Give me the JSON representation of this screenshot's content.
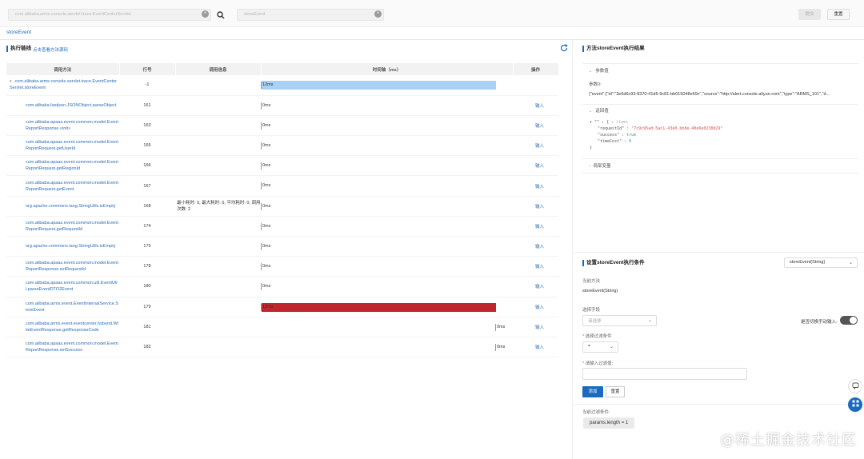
{
  "topbar": {
    "class_input": "com.alibaba.arms.console.servlet.trace.EventCenterServlet",
    "method_input": "storeEvent",
    "btn_primary": "提交",
    "btn_reset": "重置"
  },
  "tab": {
    "label": "storeEvent"
  },
  "trace": {
    "title": "执行链线",
    "link": "点击查看方法源码",
    "headers": [
      "调用方法",
      "行号",
      "调用信息",
      "时间轴（ms）",
      "操作"
    ],
    "rows": [
      {
        "method": "com.alibaba.arms.console.servlet.trace.EventCenterServlet.storeEvent",
        "line": "-1",
        "info": "",
        "time": "12ms",
        "bar": "blue",
        "op": "",
        "expand": true
      },
      {
        "method": "com.alibaba.fastjson.JSONObject.parseObject",
        "line": "161",
        "info": "",
        "time": "0ms",
        "bar": "none",
        "op": "输入"
      },
      {
        "method": "com.alibaba.apaas.event.common.model.EventReportResponse.<init>",
        "line": "163",
        "info": "",
        "time": "0ms",
        "bar": "none",
        "op": "输入"
      },
      {
        "method": "com.alibaba.apaas.event.common.model.EventReportRequest.getUserId",
        "line": "165",
        "info": "",
        "time": "0ms",
        "bar": "none",
        "op": "输入"
      },
      {
        "method": "com.alibaba.apaas.event.common.model.EventReportRequest.getRegionId",
        "line": "166",
        "info": "",
        "time": "0ms",
        "bar": "none",
        "op": "输入"
      },
      {
        "method": "com.alibaba.apaas.event.common.model.EventReportRequest.getEvent",
        "line": "167",
        "info": "",
        "time": "0ms",
        "bar": "none",
        "op": "输入"
      },
      {
        "method": "org.apache.commons.lang.StringUtils.isEmpty",
        "line": "168",
        "info": "最小耗时: 0, 最大耗时: 0, 平均耗时: 0, 调用次数: 2",
        "time": "0ms",
        "bar": "none",
        "op": "输入"
      },
      {
        "method": "com.alibaba.apaas.event.common.model.EventReportRequest.getRequestId",
        "line": "174",
        "info": "",
        "time": "0ms",
        "bar": "none",
        "op": "输入"
      },
      {
        "method": "org.apache.commons.lang.StringUtils.isEmpty",
        "line": "175",
        "info": "",
        "time": "0ms",
        "bar": "none",
        "op": "输入"
      },
      {
        "method": "com.alibaba.apaas.event.common.model.EventReportResponse.setRequestId",
        "line": "178",
        "info": "",
        "time": "0ms",
        "bar": "none",
        "op": "输入"
      },
      {
        "method": "com.alibaba.apaas.event.common.util.EventUtil.parseEventDTO2Event",
        "line": "180",
        "info": "",
        "time": "0ms",
        "bar": "none",
        "op": "输入"
      },
      {
        "method": "com.alibaba.arms.event.EventInternalService.StoreEvent",
        "line": "179",
        "info": "",
        "time": "12ms",
        "bar": "red",
        "op": "输入"
      },
      {
        "method": "com.alibaba.arms.event.eventcenter.hsbund.WriteEventResponse.getResponseCode",
        "line": "181",
        "info": "",
        "time": "0ms",
        "bar": "end",
        "op": "输入"
      },
      {
        "method": "com.alibaba.apaas.event.common.model.EventReportResponse.setSuccess",
        "line": "182",
        "info": "",
        "time": "0ms",
        "bar": "end",
        "op": "输入"
      }
    ],
    "bar_colors": {
      "blue": "#a9d0f5",
      "red": "#c0272d"
    }
  },
  "result": {
    "title": "方法storeEvent执行结果",
    "params_label": "参数值",
    "param0_label": "参数0:",
    "param0_value": "{\"event\":{\"id\":\"3e6d6c93-8370-41d5-9c81-bb015048e69c\",\"source\":\"http://alert.console.aliyun.com\",\"type\":\"ARMS_101\",\"d...",
    "return_label": "返回值",
    "return_lines": [
      {
        "indent": 0,
        "parts": [
          {
            "t": "\"\" : {",
            "c": "k"
          },
          {
            "t": "  ▸ items",
            "c": "c"
          }
        ]
      },
      {
        "indent": 1,
        "parts": [
          {
            "t": "\"requestId\"",
            "c": "k"
          },
          {
            "t": " : ",
            "c": "k"
          },
          {
            "t": "\"7c9c95ad-5ac1-43e0-bb8e-40e6e0238d29\"",
            "c": "s"
          }
        ]
      },
      {
        "indent": 1,
        "parts": [
          {
            "t": "\"success\"",
            "c": "k"
          },
          {
            "t": " : ",
            "c": "k"
          },
          {
            "t": "true",
            "c": "g"
          }
        ]
      },
      {
        "indent": 1,
        "parts": [
          {
            "t": "\"timeCost\"",
            "c": "k"
          },
          {
            "t": " : ",
            "c": "k"
          },
          {
            "t": "0",
            "c": "g"
          }
        ]
      },
      {
        "indent": 0,
        "parts": [
          {
            "t": "}",
            "c": "k"
          }
        ]
      }
    ],
    "vars_label": "局部变量"
  },
  "condition": {
    "title": "设置storeEvent执行条件",
    "method_select": "storeEvent(String)",
    "current_method_label": "当前方法",
    "current_method": "storeEvent(String)",
    "field_label": "选择字段",
    "field_placeholder": "请选择",
    "manual_label": "是否切换手动输入:",
    "filter_cond_label": "选择过滤条件",
    "filter_cond_value": "=",
    "filter_value_label": "请输入过滤值:",
    "add_button": "添加",
    "reset_button": "重置",
    "current_filter_label": "当前过滤条件:",
    "current_filter": "params.length = 1"
  },
  "watermark": "@稀土掘金技术社区"
}
